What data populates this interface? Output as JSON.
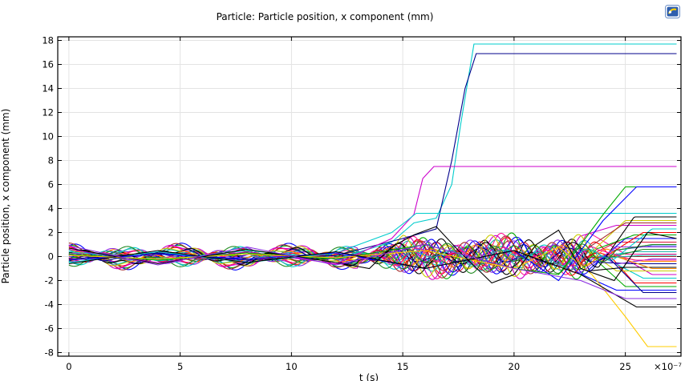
{
  "colors": {
    "background": "#ffffff",
    "axis": "#000000",
    "grid": "#e3e3e3",
    "palette": [
      "#0000ff",
      "#00aa00",
      "#ff0000",
      "#00cccc",
      "#cc00cc",
      "#cccc00",
      "#000000",
      "#00008b",
      "#ff8c00",
      "#8a2be2",
      "#a52a2a",
      "#ff1493",
      "#20b2aa",
      "#228b22",
      "#4169e1",
      "#dc143c"
    ]
  },
  "toolbar": {
    "logo_icon": "comsol-logo-icon"
  },
  "chart_data": {
    "type": "line",
    "title": "Particle: Particle position, x component (mm)",
    "xlabel": "t (s)",
    "ylabel": "Particle position, x component (mm)",
    "x_multiplier_label": "×10⁻⁷",
    "xlim": [
      -0.5,
      27.5
    ],
    "ylim": [
      -8.3,
      18.3
    ],
    "x_ticks": [
      0,
      5,
      10,
      15,
      20,
      25
    ],
    "x_tick_labels": [
      "0",
      "5",
      "10",
      "15",
      "20",
      "25"
    ],
    "y_ticks": [
      -8,
      -6,
      -4,
      -2,
      0,
      2,
      4,
      6,
      8,
      10,
      12,
      14,
      16,
      18
    ],
    "y_tick_labels": [
      "-8",
      "-6",
      "-4",
      "-2",
      "0",
      "2",
      "4",
      "6",
      "8",
      "10",
      "12",
      "14",
      "16",
      "18"
    ],
    "grid": true,
    "legend": "none",
    "highlighted_series": [
      {
        "color": "#00cccc",
        "x": [
          0,
          4,
          8,
          12,
          14.5,
          15.5,
          16.5,
          17.2,
          17.6,
          18.2,
          27.3
        ],
        "y": [
          0.4,
          -0.3,
          0.5,
          -0.2,
          1.2,
          2.8,
          3.2,
          6.0,
          11.0,
          17.7,
          17.7
        ]
      },
      {
        "color": "#00008b",
        "x": [
          0,
          4,
          8,
          12,
          15,
          16.5,
          17.2,
          17.8,
          18.3,
          27.3
        ],
        "y": [
          -0.2,
          0.3,
          -0.3,
          0.1,
          1.5,
          2.3,
          8.0,
          14.0,
          16.9,
          16.9
        ]
      },
      {
        "color": "#cc00cc",
        "x": [
          0,
          4,
          8,
          12,
          14.5,
          15.5,
          15.9,
          16.4,
          16.7,
          27.3
        ],
        "y": [
          0.6,
          -0.5,
          0.4,
          -0.6,
          1.5,
          3.5,
          6.5,
          7.5,
          7.5,
          7.5
        ]
      },
      {
        "color": "#00cccc",
        "x": [
          0,
          4,
          8,
          12,
          14.5,
          15.2,
          15.6,
          16.0,
          27.3
        ],
        "y": [
          -0.5,
          0.4,
          -0.5,
          0.3,
          2.0,
          3.0,
          3.6,
          3.6,
          3.6
        ]
      },
      {
        "color": "#00aa00",
        "x": [
          0,
          4,
          8,
          12,
          16,
          20,
          22,
          24,
          25,
          27.3
        ],
        "y": [
          0.2,
          -0.3,
          0.3,
          -0.2,
          1.0,
          -1.0,
          -1.5,
          3.5,
          5.8,
          5.8
        ]
      },
      {
        "color": "#0000ff",
        "x": [
          0,
          4,
          8,
          12,
          16,
          20,
          22,
          24,
          25.5,
          27.3
        ],
        "y": [
          -0.3,
          0.2,
          -0.2,
          0.3,
          -1.0,
          0.5,
          -2.0,
          3.0,
          5.8,
          5.8
        ]
      },
      {
        "color": "#ffcc00",
        "x": [
          0,
          4,
          8,
          12,
          16,
          20,
          22,
          23.5,
          25,
          26,
          27.3
        ],
        "y": [
          0.1,
          -0.2,
          0.2,
          -0.1,
          0.5,
          -1.0,
          0.8,
          -1.5,
          -5.0,
          -7.5,
          -7.5
        ]
      },
      {
        "color": "#000000",
        "x": [
          0,
          4,
          8,
          12,
          13.5,
          14.5,
          15.5,
          16.5,
          17.5,
          19,
          20,
          21,
          22,
          23,
          24.5,
          26,
          27.3
        ],
        "y": [
          0.7,
          -0.6,
          0.6,
          -0.5,
          -1.0,
          0.8,
          1.8,
          2.5,
          0.5,
          -2.2,
          -1.5,
          1.0,
          2.2,
          -1.0,
          -2.0,
          2.0,
          1.5
        ]
      },
      {
        "color": "#000000",
        "x": [
          0,
          4,
          8,
          12,
          16,
          20,
          23,
          25.5,
          27.3
        ],
        "y": [
          -0.6,
          0.5,
          -0.5,
          0.4,
          -1.0,
          0.5,
          -1.5,
          -4.2,
          -4.2
        ]
      },
      {
        "color": "#8a2be2",
        "x": [
          0,
          4,
          8,
          12,
          16,
          20,
          23,
          25,
          27.3
        ],
        "y": [
          0.9,
          -0.7,
          0.8,
          -0.7,
          1.0,
          -1.0,
          -2.0,
          -3.5,
          -3.5
        ]
      }
    ],
    "bundle_final_values": [
      -2.8,
      -2.5,
      -2.2,
      -1.8,
      -1.5,
      -1.2,
      -0.9,
      -0.6,
      -0.4,
      -0.2,
      0,
      0.2,
      0.4,
      0.6,
      0.9,
      1.2,
      1.5,
      1.8,
      2.0,
      2.3,
      2.6,
      3.0,
      3.3,
      -3.0,
      -1.0,
      0.8,
      2.8,
      -0.3,
      0.1,
      1.0
    ]
  }
}
